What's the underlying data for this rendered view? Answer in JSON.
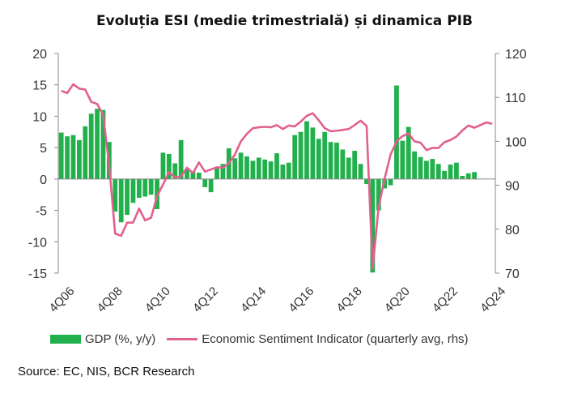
{
  "title": "Evoluția ESI (medie trimestrială) și dinamica PIB",
  "source": "Source: EC, NIS, BCR Research",
  "legend": {
    "gdp": "GDP (%, y/y)",
    "esi": "Economic Sentiment Indicator (quarterly avg, rhs)"
  },
  "colors": {
    "gdp": "#21b04b",
    "esi": "#e2608f",
    "axis": "#888888"
  },
  "chart_data": {
    "type": "bar",
    "categories": [
      "4Q06",
      "1Q07",
      "2Q07",
      "3Q07",
      "4Q07",
      "1Q08",
      "2Q08",
      "3Q08",
      "4Q08",
      "1Q09",
      "2Q09",
      "3Q09",
      "4Q09",
      "1Q10",
      "2Q10",
      "3Q10",
      "4Q10",
      "1Q11",
      "2Q11",
      "3Q11",
      "4Q11",
      "1Q12",
      "2Q12",
      "3Q12",
      "4Q12",
      "1Q13",
      "2Q13",
      "3Q13",
      "4Q13",
      "1Q14",
      "2Q14",
      "3Q14",
      "4Q14",
      "1Q15",
      "2Q15",
      "3Q15",
      "4Q15",
      "1Q16",
      "2Q16",
      "3Q16",
      "4Q16",
      "1Q17",
      "2Q17",
      "3Q17",
      "4Q17",
      "1Q18",
      "2Q18",
      "3Q18",
      "4Q18",
      "1Q19",
      "2Q19",
      "3Q19",
      "4Q19",
      "1Q20",
      "2Q20",
      "3Q20",
      "4Q20",
      "1Q21",
      "2Q21",
      "3Q21",
      "4Q21",
      "1Q22",
      "2Q22",
      "3Q22",
      "4Q22",
      "1Q23",
      "2Q23",
      "3Q23",
      "4Q23",
      "1Q24",
      "2Q24",
      "3Q24",
      "4Q24"
    ],
    "x_tick_labels": [
      "4Q06",
      "4Q08",
      "4Q10",
      "4Q12",
      "4Q14",
      "4Q16",
      "4Q18",
      "4Q20",
      "4Q22",
      "4Q24"
    ],
    "series": [
      {
        "name": "GDP (%, y/y)",
        "type": "bar",
        "axis": "left",
        "values": [
          7.4,
          6.8,
          7.0,
          6.2,
          8.4,
          10.4,
          11.2,
          11.0,
          5.9,
          -5.2,
          -6.9,
          -5.7,
          -3.8,
          -3.0,
          -2.8,
          -2.5,
          -4.8,
          4.2,
          4.0,
          2.5,
          6.2,
          1.6,
          1.2,
          1.0,
          -1.3,
          -2.1,
          1.9,
          2.4,
          4.9,
          3.3,
          4.2,
          3.6,
          2.9,
          3.4,
          3.1,
          2.8,
          4.1,
          2.3,
          2.6,
          7.0,
          7.5,
          9.2,
          8.2,
          6.4,
          7.5,
          5.9,
          5.8,
          4.7,
          3.4,
          4.5,
          2.4,
          -0.8,
          -14.9,
          -5.0,
          -1.5,
          -1.0,
          14.9,
          6.1,
          8.3,
          4.4,
          3.5,
          2.9,
          3.2,
          2.4,
          1.3,
          2.3,
          2.6,
          0.5,
          0.9,
          1.1,
          0.0,
          0.0,
          0.0
        ]
      },
      {
        "name": "Economic Sentiment Indicator (quarterly avg, rhs)",
        "type": "line",
        "axis": "right",
        "values": [
          111.5,
          111.0,
          113.0,
          112.0,
          111.8,
          109.0,
          108.5,
          106.0,
          94.5,
          79.0,
          78.5,
          81.5,
          81.5,
          84.7,
          82.0,
          82.6,
          87.5,
          90.2,
          93.0,
          91.8,
          92.0,
          94.0,
          92.8,
          95.2,
          93.1,
          93.6,
          94.1,
          94.0,
          95.0,
          97.0,
          100.0,
          101.7,
          103.0,
          103.2,
          103.3,
          103.2,
          103.7,
          102.8,
          103.6,
          103.4,
          104.5,
          105.8,
          106.4,
          104.8,
          103.0,
          102.3,
          102.4,
          102.6,
          102.8,
          103.7,
          104.7,
          103.5,
          71.0,
          85.0,
          91.5,
          97.0,
          100.0,
          101.2,
          101.8,
          100.0,
          99.7,
          98.0,
          98.5,
          98.5,
          99.8,
          100.3,
          101.1,
          102.5,
          103.6,
          103.1,
          103.7,
          104.3,
          104.0
        ]
      }
    ],
    "y_left": {
      "min": -15,
      "max": 20,
      "ticks": [
        -15,
        -10,
        -5,
        0,
        5,
        10,
        15,
        20
      ]
    },
    "y_right": {
      "min": 70,
      "max": 120,
      "ticks": [
        70,
        80,
        90,
        100,
        110,
        120
      ]
    },
    "grid": false,
    "legend_position": "bottom"
  }
}
